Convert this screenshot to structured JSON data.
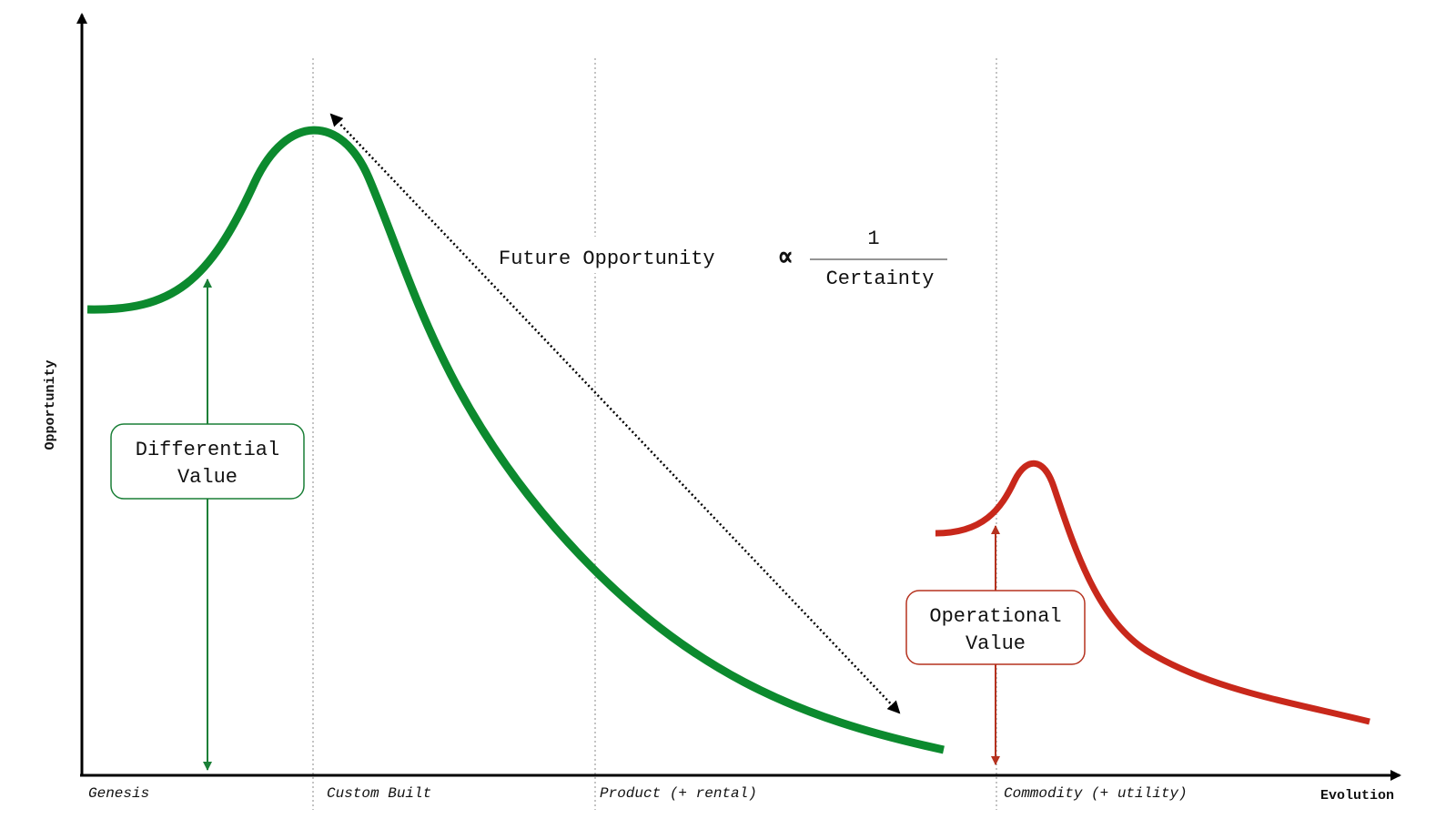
{
  "axes": {
    "y_label": "Opportunity",
    "x_label": "Evolution"
  },
  "stages": [
    {
      "label": "Genesis"
    },
    {
      "label": "Custom Built"
    },
    {
      "label": "Product (+ rental)"
    },
    {
      "label": "Commodity (+ utility)"
    }
  ],
  "formula": {
    "lhs": "Future Opportunity",
    "symbol": "∝",
    "numerator": "1",
    "denominator": "Certainty"
  },
  "boxes": {
    "differential": {
      "line1": "Differential",
      "line2": "Value",
      "color": "#1a7f37"
    },
    "operational": {
      "line1": "Operational",
      "line2": "Value",
      "color": "#b5321f"
    }
  },
  "colors": {
    "green_curve": "#0c8a2e",
    "red_curve": "#c8281b",
    "axis": "#000000",
    "divider": "#888888"
  }
}
